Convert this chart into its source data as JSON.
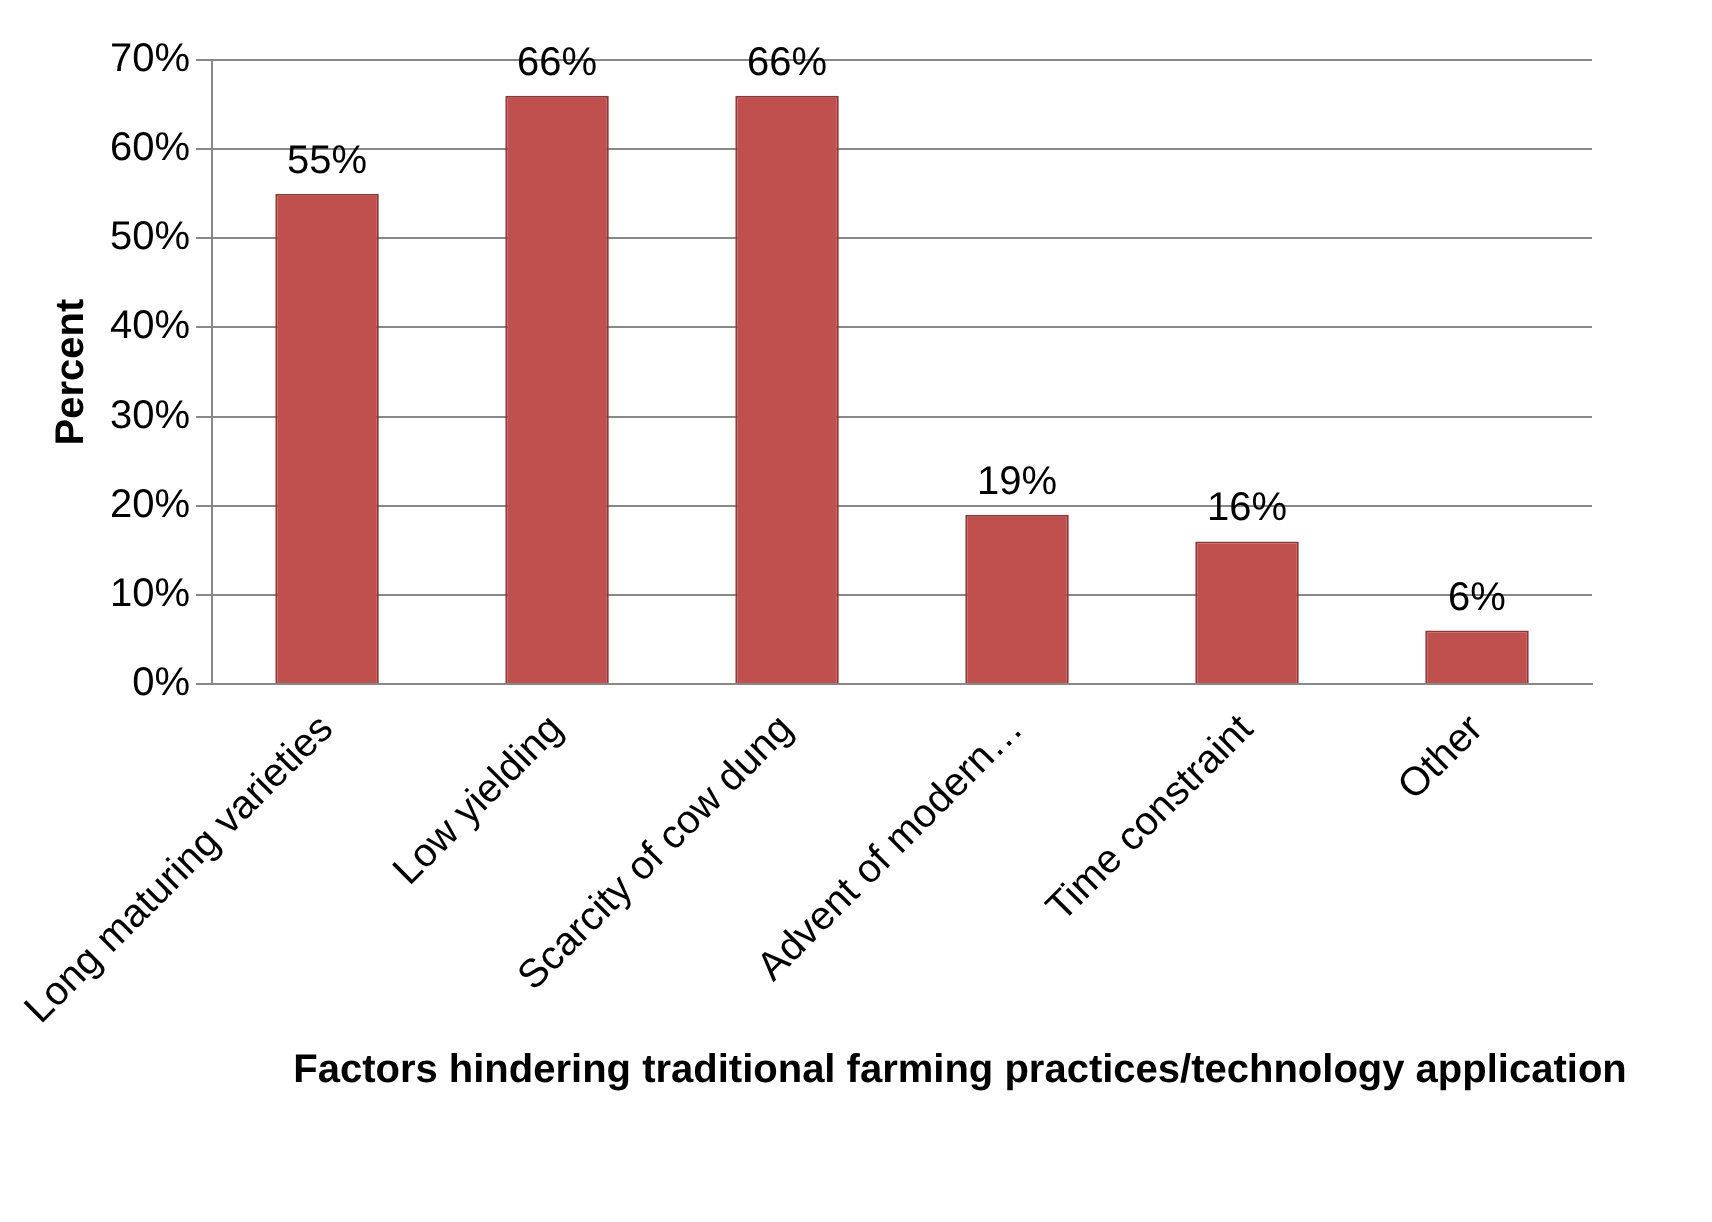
{
  "chart_data": {
    "type": "bar",
    "xlabel": "Factors hindering traditional farming practices/technology application",
    "ylabel": "Percent",
    "categories": [
      "Long maturing varieties",
      "Low yielding",
      "Scarcity of cow dung",
      "Advent of modern…",
      "Time constraint",
      "Other"
    ],
    "values": [
      55,
      66,
      66,
      19,
      16,
      6
    ],
    "value_labels": [
      "55%",
      "66%",
      "66%",
      "19%",
      "16%",
      "6%"
    ],
    "color": "#c0504d",
    "ylim": [
      0,
      70
    ],
    "yticks": [
      {
        "value": 0,
        "label": "0%"
      },
      {
        "value": 10,
        "label": "10%"
      },
      {
        "value": 20,
        "label": "20%"
      },
      {
        "value": 30,
        "label": "30%"
      },
      {
        "value": 40,
        "label": "40%"
      },
      {
        "value": 50,
        "label": "50%"
      },
      {
        "value": 60,
        "label": "60%"
      },
      {
        "value": 70,
        "label": "70%"
      }
    ],
    "grid": "y",
    "legend": false
  }
}
